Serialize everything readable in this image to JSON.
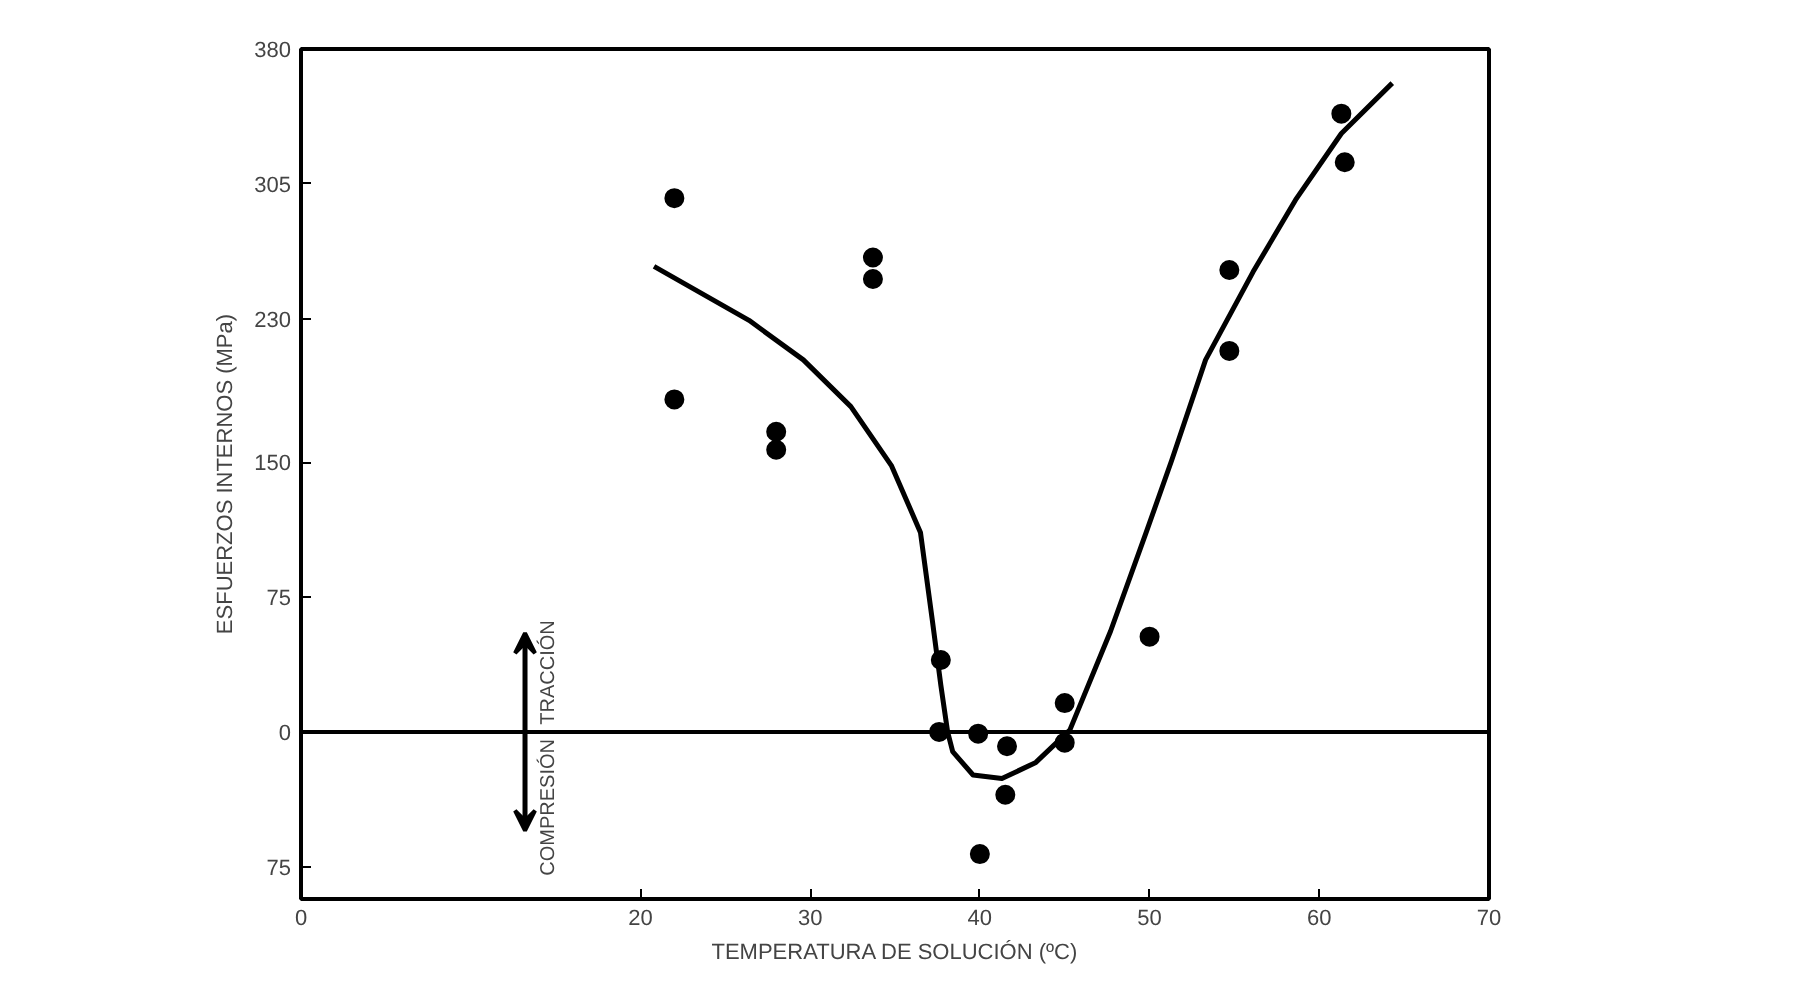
{
  "chart_data": {
    "type": "scatter",
    "xlabel": "TEMPERATURA DE SOLUCIÓN (ºC)",
    "ylabel": "ESFUERZOS INTERNOS (MPa)",
    "xlim": [
      0,
      70
    ],
    "xticks": [
      0,
      20,
      30,
      40,
      50,
      60,
      70
    ],
    "ylim": [
      -93,
      380
    ],
    "yticks": [
      380,
      305,
      230,
      150,
      75,
      0,
      {
        "value": -75,
        "label": "75"
      }
    ],
    "grid": false,
    "ref_lines": [
      {
        "axis": "y",
        "value": 0,
        "color": "#000000"
      }
    ],
    "annotations": [
      "TRACCIÓN",
      "COMPRESIÓN"
    ],
    "series": [
      {
        "marker": "circle",
        "color": "#000000",
        "x": [
          22,
          22,
          28,
          28,
          33.7,
          33.7,
          37.7,
          37.6,
          39.9,
          41.6,
          41.5,
          40,
          45,
          45,
          50,
          54.7,
          54.7,
          61.3,
          61.5
        ],
        "values": [
          297,
          185,
          167,
          157,
          264,
          252,
          40,
          0,
          -1,
          -8,
          -35,
          -68,
          16,
          -6,
          53,
          257,
          212,
          344,
          317
        ]
      },
      {
        "type": "line",
        "color": "#000000",
        "line_style": "solid",
        "x": [
          20.8,
          26.4,
          29.6,
          32.4,
          34.8,
          36.5,
          37.2,
          37.7,
          38.1,
          38.4,
          39.6,
          41.3,
          43.3,
          45.3,
          47.7,
          49.8,
          51.3,
          53.3,
          56.1,
          58.6,
          61.3,
          64.3
        ],
        "values": [
          259,
          229,
          207,
          181,
          148,
          111,
          62,
          26,
          0,
          -11,
          -24,
          -26,
          -17,
          1,
          56,
          111,
          151,
          207,
          256,
          296,
          333,
          361
        ]
      }
    ]
  }
}
